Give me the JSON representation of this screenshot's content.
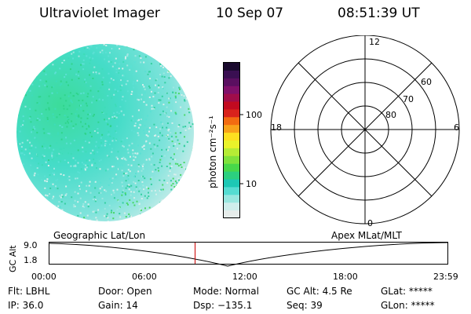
{
  "header": {
    "instrument": "Ultraviolet Imager",
    "date": "10 Sep 07",
    "time": "08:51:39 UT"
  },
  "colorbar": {
    "unit_label": "photon cm⁻²s⁻¹",
    "tick_labels": [
      "100",
      "10"
    ],
    "colors": [
      "#1a0a2e",
      "#3a0f52",
      "#5a0f60",
      "#80106a",
      "#a00d4a",
      "#c20a20",
      "#d8231c",
      "#f26b11",
      "#f8a21a",
      "#fde020",
      "#e9f32a",
      "#b5ec35",
      "#7fe23c",
      "#48d84a",
      "#2cd07f",
      "#1dc8b5",
      "#55dcd2",
      "#98e7e0",
      "#cfeeec",
      "#e6ecea"
    ]
  },
  "polar_plot": {
    "top_label": "12",
    "bottom_label": "0",
    "left_label": "18",
    "right_label": "6",
    "lat_labels": [
      "60",
      "70",
      "80"
    ]
  },
  "timeline": {
    "left_label": "Geographic Lat/Lon",
    "right_label": "Apex MLat/MLT",
    "y_axis_label": "GC Alt",
    "y_ticks": [
      "9.0",
      "1.8"
    ],
    "x_ticks": [
      "00:00",
      "06:00",
      "12:00",
      "18:00",
      "23:59"
    ],
    "current_time_marker_color": "#cc0000"
  },
  "status": {
    "flt": "Flt: LBHL",
    "door": "Door: Open",
    "mode": "Mode: Normal",
    "gc_alt": "GC Alt: 4.5 Re",
    "glat": "GLat: *****",
    "ip": "IP: 36.0",
    "gain": "Gain: 14",
    "dsp": "Dsp: −135.1",
    "seq": "Seq: 39",
    "glon": "GLon: *****"
  }
}
